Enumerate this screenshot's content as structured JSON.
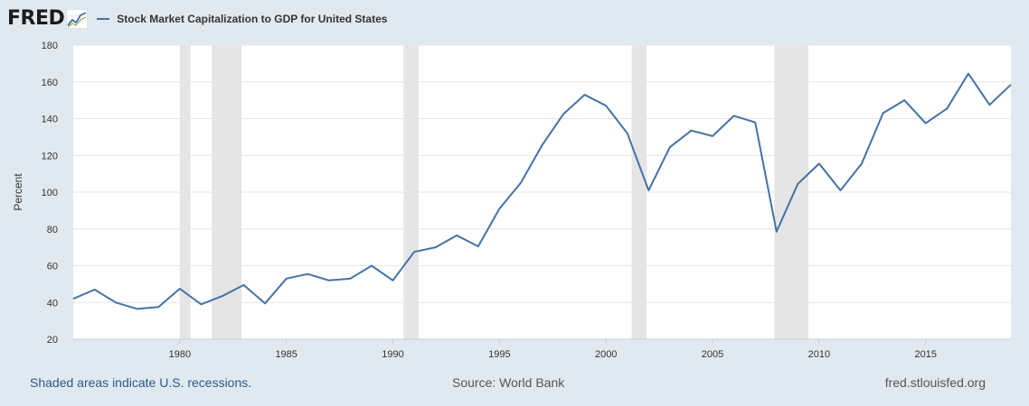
{
  "header": {
    "logo_text": "FRED",
    "logo_icon": "fred-chart-logo-icon"
  },
  "colors": {
    "page_background": "#e1e9f0",
    "plot_background": "#ffffff",
    "series_line": "#4572a7",
    "recession_shade": "#e5e5e5",
    "gridline": "#e6e6e6"
  },
  "chart_data": {
    "type": "line",
    "title": "",
    "xlabel": "",
    "ylabel": "Percent",
    "xlim": [
      1975.0,
      2019.0
    ],
    "ylim": [
      20,
      180
    ],
    "grid": true,
    "legend_position": "top-left",
    "x_ticks": [
      "1980",
      "1985",
      "1990",
      "1995",
      "2000",
      "2005",
      "2010",
      "2015"
    ],
    "y_ticks": [
      "20",
      "40",
      "60",
      "80",
      "100",
      "120",
      "140",
      "160",
      "180"
    ],
    "recessions": [
      {
        "start": 1980.0,
        "end": 1980.5
      },
      {
        "start": 1981.5,
        "end": 1982.9
      },
      {
        "start": 1990.5,
        "end": 1991.2
      },
      {
        "start": 2001.2,
        "end": 2001.9
      },
      {
        "start": 2007.9,
        "end": 2009.5
      }
    ],
    "series": [
      {
        "name": "Stock Market Capitalization to GDP for United States",
        "x": [
          1975,
          1976,
          1977,
          1978,
          1979,
          1980,
          1981,
          1982,
          1983,
          1984,
          1985,
          1986,
          1987,
          1988,
          1989,
          1990,
          1991,
          1992,
          1993,
          1994,
          1995,
          1996,
          1997,
          1998,
          1999,
          2000,
          2001,
          2002,
          2003,
          2004,
          2005,
          2006,
          2007,
          2008,
          2009,
          2010,
          2011,
          2012,
          2013,
          2014,
          2015,
          2016,
          2017,
          2018,
          2019
        ],
        "values": [
          42,
          47,
          40,
          36.5,
          37.5,
          47.5,
          39,
          43.5,
          49.5,
          39.5,
          53,
          55.5,
          52,
          53,
          60,
          52,
          67.5,
          70,
          76.5,
          70.5,
          91,
          105,
          125.5,
          142.5,
          153,
          147,
          132,
          101,
          124.5,
          133.5,
          130.5,
          141.5,
          138,
          78.5,
          104.5,
          115.5,
          101,
          115.5,
          143,
          150,
          137.5,
          145.5,
          164.5,
          147.5,
          158.5
        ]
      }
    ]
  },
  "footer": {
    "recession_note": "Shaded areas indicate U.S. recessions.",
    "source": "Source: World Bank",
    "site": "fred.stlouisfed.org"
  }
}
